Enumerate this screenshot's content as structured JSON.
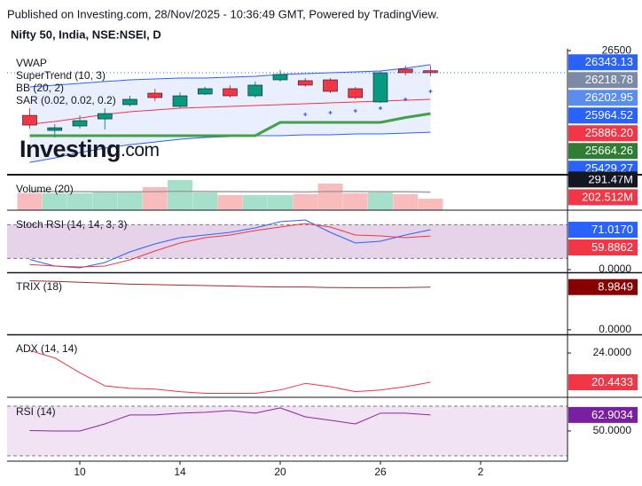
{
  "published": "Published on Investing.com, 28/Nov/2025 - 10:36:49 GMT, Powered by TradingView.",
  "chart_data": [
    {
      "type": "candlestick",
      "title": "Nifty 50, India, NSE:NSEI, D",
      "logo": {
        "text": "Investing",
        "suffix": ".com"
      },
      "categories": [
        null,
        null,
        "10",
        null,
        null,
        null,
        "14",
        null,
        null,
        null,
        "20",
        null,
        null,
        null,
        "26",
        null,
        null,
        null,
        "2"
      ],
      "open": [
        25629,
        25426,
        25486,
        25581,
        25773,
        25928,
        25749,
        25916,
        25988,
        25892,
        26107,
        26096,
        26107,
        25988,
        25809,
        26251,
        26230,
        null,
        null
      ],
      "high": [
        25725,
        25510,
        25629,
        25725,
        25892,
        25988,
        25940,
        26012,
        26036,
        26084,
        26239,
        26131,
        26131,
        26012,
        26227,
        26299,
        26299,
        null,
        null
      ],
      "low": [
        25450,
        25331,
        25450,
        25438,
        25749,
        25821,
        25725,
        25904,
        25868,
        25868,
        26084,
        26012,
        25928,
        25845,
        25797,
        26167,
        26155,
        null,
        null
      ],
      "close": [
        25498,
        25462,
        25558,
        25653,
        25845,
        25868,
        25892,
        25988,
        25892,
        26036,
        26179,
        26036,
        25952,
        25868,
        26203,
        26203,
        26202.95,
        null,
        null
      ],
      "up_color": "#089981",
      "down_color": "#f23645",
      "series": [
        {
          "name": "VWAP",
          "color": "#2962ff"
        },
        {
          "name": "SuperTrend (10, 3)",
          "type": "line",
          "color": "#43a047",
          "values": [
            25355,
            25355,
            25355,
            25355,
            25355,
            25355,
            25355,
            25355,
            25355,
            25355,
            25534,
            25534,
            25534,
            25534,
            25534,
            25600,
            25653,
            null,
            null
          ]
        },
        {
          "name": "BB (20, 2)",
          "type": "band",
          "color": "#2962ff",
          "middle_color": "#f23645",
          "upper": [
            26012,
            26036,
            26060,
            26084,
            26107,
            26119,
            26131,
            26131,
            26143,
            26155,
            26179,
            26191,
            26203,
            26215,
            26227,
            26263,
            26311,
            null,
            null
          ],
          "values": [
            25510,
            25546,
            25593,
            25641,
            25677,
            25701,
            25725,
            25737,
            25749,
            25761,
            25773,
            25785,
            25797,
            25809,
            25821,
            25833,
            25845,
            null,
            null
          ],
          "lower": [
            24996,
            25056,
            25128,
            25187,
            25235,
            25271,
            25307,
            25331,
            25343,
            25355,
            25355,
            25367,
            25367,
            25379,
            25379,
            25390,
            25402,
            null,
            null
          ]
        },
        {
          "name": "SAR (0.02, 0.02, 0.2)",
          "type": "dots",
          "color": "#2962ff",
          "values": [
            null,
            null,
            null,
            null,
            null,
            null,
            null,
            null,
            null,
            null,
            null,
            25641,
            25665,
            25689,
            25725,
            25845,
            25952,
            null,
            null
          ]
        }
      ],
      "ylim": [
        24830,
        26525
      ],
      "yticks": [
        26500
      ],
      "price_labels": [
        {
          "value": 26343.13,
          "color": "#2962ff"
        },
        {
          "value": 26218.78,
          "color": "#7c8aa8"
        },
        {
          "value": 26202.95,
          "color": "#5b8def"
        },
        {
          "value": 25964.52,
          "color": "#2962ff"
        },
        {
          "value": 25886.2,
          "label": "25886.20",
          "color": "#f23645"
        },
        {
          "value": 25664.26,
          "color": "#2e7d32"
        },
        {
          "value": 25429.27,
          "color": "#2962ff"
        }
      ]
    },
    {
      "type": "bar",
      "title": "Volume (20)",
      "values": [
        160000000,
        160000000,
        160000000,
        168000000,
        168000000,
        219000000,
        286000000,
        168000000,
        143000000,
        143000000,
        143000000,
        152000000,
        253000000,
        160000000,
        168000000,
        152000000,
        109000000,
        null,
        null
      ],
      "ma": [
        180000000,
        178000000,
        176000000,
        175000000,
        174000000,
        176000000,
        180000000,
        178000000,
        176000000,
        175000000,
        174000000,
        173000000,
        178000000,
        177000000,
        176000000,
        175000000,
        172000000,
        null,
        null
      ],
      "ma_color": "#9e9e9e",
      "up_color": "#a6e0cb",
      "down_color": "#f9bcbc",
      "ylim": [
        0,
        320000000
      ],
      "price_labels": [
        {
          "value": 291470000,
          "label": "291.47M",
          "color": "#131722"
        },
        {
          "value": 202512000,
          "label": "202.512M",
          "color": "#f23645"
        }
      ]
    },
    {
      "type": "line",
      "title": "Stoch RSI (14, 14, 3, 3)",
      "series": [
        {
          "color": "#2962ff",
          "values": [
            18,
            6.3,
            3.2,
            12.6,
            31.6,
            45.8,
            56.9,
            61.6,
            66.4,
            74.2,
            85.3,
            88.5,
            66.4,
            47.4,
            50.6,
            61.6,
            71.017,
            null,
            null
          ]
        },
        {
          "color": "#f23645",
          "values": [
            9,
            6.3,
            4.7,
            6.3,
            17.4,
            33.2,
            47.4,
            56.9,
            61.6,
            69.5,
            75.8,
            82.1,
            75.8,
            61.6,
            60,
            56.9,
            59.8862,
            null,
            null
          ]
        }
      ],
      "bands": [
        20,
        80
      ],
      "band_color": "#e6d3ea",
      "ylim": [
        -4.7,
        105.8
      ],
      "yticks": [
        {
          "value": 0,
          "label": "0.0000"
        }
      ],
      "price_labels": [
        {
          "value": 71.017,
          "label": "71.0170",
          "color": "#2962ff"
        },
        {
          "value": 59.8862,
          "color": "#f23645"
        }
      ]
    },
    {
      "type": "line",
      "title": "TRIX (18)",
      "series": [
        {
          "color": "#a52a2a",
          "values": [
            10.3,
            10.2,
            10,
            9.8,
            9.6,
            9.5,
            9.4,
            9.3,
            9.2,
            9.1,
            9,
            9,
            8.9,
            8.85,
            8.85,
            8.9,
            8.9849,
            null,
            null
          ]
        }
      ],
      "ylim": [
        -0.96,
        12.1
      ],
      "yticks": [
        {
          "value": 0,
          "label": "0.0000"
        }
      ],
      "price_labels": [
        {
          "value": 8.9849,
          "color": "#880000"
        }
      ]
    },
    {
      "type": "line",
      "title": "ADX (14, 14)",
      "series": [
        {
          "color": "#f23645",
          "values": [
            24.3,
            23.4,
            21.6,
            20,
            19.7,
            19.6,
            19.3,
            19.1,
            19.1,
            19.1,
            19.5,
            20.3,
            19.9,
            19.3,
            19.5,
            19.9,
            20.4433,
            null,
            null
          ]
        }
      ],
      "ylim": [
        18.61,
        26.27
      ],
      "yticks": [
        {
          "value": 24,
          "label": "24.0000"
        }
      ],
      "price_labels": [
        {
          "value": 20.4433,
          "color": "#f23645"
        }
      ]
    },
    {
      "type": "line",
      "title": "RSI (14)",
      "series": [
        {
          "color": "#8e24aa",
          "values": [
            50.3,
            50,
            50,
            55.7,
            62.9,
            62.9,
            64.3,
            65,
            66.4,
            64.3,
            68.6,
            61.4,
            58.6,
            55.7,
            64.3,
            64.3,
            62.9034,
            null,
            null
          ]
        }
      ],
      "bands": [
        30,
        70
      ],
      "band_color": "#f1e3f3",
      "ylim": [
        25.7,
        77.1
      ],
      "yticks": [
        {
          "value": 50,
          "label": "50.0000"
        }
      ],
      "price_labels": [
        {
          "value": 62.9034,
          "color": "#7b1fa2"
        }
      ]
    }
  ]
}
